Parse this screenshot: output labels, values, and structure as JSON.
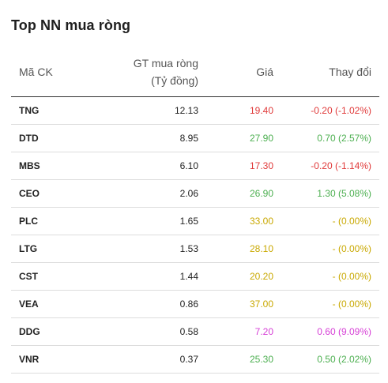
{
  "widget": {
    "title": "Top NN mua ròng"
  },
  "table": {
    "headers": {
      "code": "Mã CK",
      "value_line1": "GT mua ròng",
      "value_line2": "(Tỷ đồng)",
      "price": "Giá",
      "change": "Thay đổi"
    },
    "rows": [
      {
        "code": "TNG",
        "value": "12.13",
        "price": "19.40",
        "change": "-0.20 (-1.02%)",
        "status": "down"
      },
      {
        "code": "DTD",
        "value": "8.95",
        "price": "27.90",
        "change": "0.70 (2.57%)",
        "status": "up"
      },
      {
        "code": "MBS",
        "value": "6.10",
        "price": "17.30",
        "change": "-0.20 (-1.14%)",
        "status": "down"
      },
      {
        "code": "CEO",
        "value": "2.06",
        "price": "26.90",
        "change": "1.30 (5.08%)",
        "status": "up"
      },
      {
        "code": "PLC",
        "value": "1.65",
        "price": "33.00",
        "change": "- (0.00%)",
        "status": "flat"
      },
      {
        "code": "LTG",
        "value": "1.53",
        "price": "28.10",
        "change": "- (0.00%)",
        "status": "flat"
      },
      {
        "code": "CST",
        "value": "1.44",
        "price": "20.20",
        "change": "- (0.00%)",
        "status": "flat"
      },
      {
        "code": "VEA",
        "value": "0.86",
        "price": "37.00",
        "change": "- (0.00%)",
        "status": "flat"
      },
      {
        "code": "DDG",
        "value": "0.58",
        "price": "7.20",
        "change": "0.60 (9.09%)",
        "status": "ceil"
      },
      {
        "code": "VNR",
        "value": "0.37",
        "price": "25.30",
        "change": "0.50 (2.02%)",
        "status": "up"
      }
    ]
  },
  "colors": {
    "down": "#e03a3a",
    "up": "#4caf50",
    "flat": "#c9a800",
    "ceil": "#d63fd6"
  }
}
